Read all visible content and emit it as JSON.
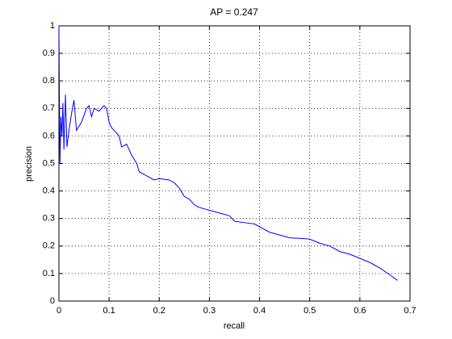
{
  "chart_data": {
    "type": "line",
    "title": "AP = 0.247",
    "xlabel": "recall",
    "ylabel": "precision",
    "x": [
      0,
      0.002,
      0.004,
      0.006,
      0.008,
      0.01,
      0.013,
      0.016,
      0.02,
      0.025,
      0.03,
      0.035,
      0.045,
      0.055,
      0.06,
      0.065,
      0.07,
      0.08,
      0.09,
      0.095,
      0.1,
      0.105,
      0.11,
      0.12,
      0.125,
      0.135,
      0.145,
      0.155,
      0.16,
      0.17,
      0.18,
      0.19,
      0.2,
      0.22,
      0.23,
      0.24,
      0.25,
      0.26,
      0.27,
      0.28,
      0.3,
      0.32,
      0.34,
      0.35,
      0.37,
      0.39,
      0.4,
      0.42,
      0.44,
      0.46,
      0.48,
      0.5,
      0.52,
      0.54,
      0.56,
      0.58,
      0.6,
      0.62,
      0.64,
      0.66,
      0.675
    ],
    "series": [
      {
        "color": "#0000ff",
        "values": [
          1,
          0.5,
          0.67,
          0.6,
          0.72,
          0.55,
          0.75,
          0.56,
          0.62,
          0.68,
          0.73,
          0.62,
          0.65,
          0.7,
          0.71,
          0.67,
          0.7,
          0.69,
          0.71,
          0.7,
          0.65,
          0.63,
          0.62,
          0.6,
          0.56,
          0.57,
          0.53,
          0.5,
          0.47,
          0.46,
          0.45,
          0.44,
          0.445,
          0.44,
          0.43,
          0.41,
          0.38,
          0.37,
          0.35,
          0.34,
          0.33,
          0.32,
          0.31,
          0.29,
          0.285,
          0.28,
          0.27,
          0.25,
          0.24,
          0.23,
          0.228,
          0.225,
          0.21,
          0.2,
          0.18,
          0.17,
          0.155,
          0.14,
          0.12,
          0.095,
          0.075
        ]
      }
    ],
    "xlim": [
      0,
      0.7
    ],
    "xticks": [
      0,
      0.1,
      0.2,
      0.3,
      0.4,
      0.5,
      0.6,
      0.7
    ],
    "ylim": [
      0,
      1
    ],
    "yticks": [
      0,
      0.1,
      0.2,
      0.3,
      0.4,
      0.5,
      0.6,
      0.7,
      0.8,
      0.9,
      1
    ],
    "grid": true
  }
}
